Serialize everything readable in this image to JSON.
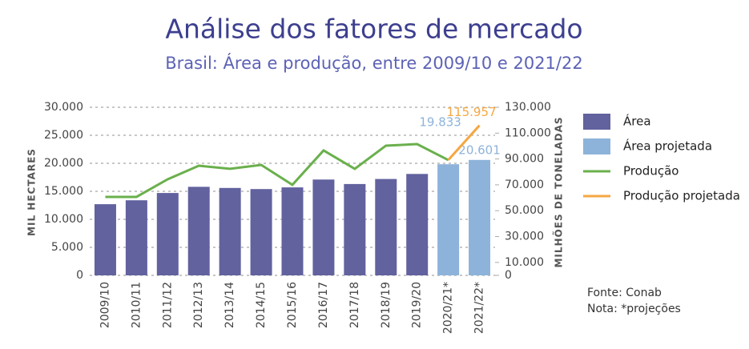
{
  "chart_data": {
    "type": "bar-line",
    "title": "Análise dos fatores de mercado",
    "subtitle": "Brasil: Área e produção, entre 2009/10 e 2021/22",
    "ylabel": "MIL HECTARES",
    "y2label": "MILHÕES DE TONELADAS",
    "categories": [
      "2009/10",
      "2010/11",
      "2011/12",
      "2012/13",
      "2013/14",
      "2014/15",
      "2015/16",
      "2016/17",
      "2017/18",
      "2018/19",
      "2019/20",
      "2020/21*",
      "2021/22*"
    ],
    "ylim": [
      0,
      30000
    ],
    "yticks": [
      0,
      {
        "value": 5000,
        "label": "5.000"
      },
      {
        "value": 10000,
        "label": "10.000"
      },
      {
        "value": 15000,
        "label": "15.000"
      },
      {
        "value": 20000,
        "label": "20.000"
      },
      {
        "value": 25000,
        "label": "25.000"
      },
      {
        "value": 30000,
        "label": "30.000"
      }
    ],
    "y2lim": [
      0,
      130000
    ],
    "y2ticks": [
      0,
      {
        "value": 10000,
        "label": "10.000"
      },
      {
        "value": 30000,
        "label": "30.000"
      },
      {
        "value": 50000,
        "label": "50.000"
      },
      {
        "value": 70000,
        "label": "70.000"
      },
      {
        "value": 90000,
        "label": "90.000"
      },
      {
        "value": 110000,
        "label": "110.000"
      },
      {
        "value": 130000,
        "label": "130.000"
      }
    ],
    "grid": true,
    "series": [
      {
        "name": "Área",
        "kind": "bar",
        "color": "#62629f",
        "values": [
          12700,
          13400,
          14700,
          15800,
          15600,
          15400,
          15700,
          17100,
          16300,
          17200,
          18100,
          null,
          null
        ]
      },
      {
        "name": "Área projetada",
        "kind": "bar",
        "color": "#8db3da",
        "values": [
          null,
          null,
          null,
          null,
          null,
          null,
          null,
          null,
          null,
          null,
          null,
          19833,
          20601
        ],
        "value_labels": [
          null,
          null,
          null,
          null,
          null,
          null,
          null,
          null,
          null,
          null,
          null,
          "19.833",
          "20.601"
        ]
      },
      {
        "name": "Produção",
        "kind": "line",
        "axis": "y2",
        "color": "#6ab04c",
        "values": [
          60700,
          60700,
          74300,
          84800,
          82400,
          85400,
          70000,
          96600,
          82400,
          100300,
          101500,
          89200,
          null
        ]
      },
      {
        "name": "Produção projetada",
        "kind": "line",
        "axis": "y2",
        "color": "#f5a742",
        "values": [
          null,
          null,
          null,
          null,
          null,
          null,
          null,
          null,
          null,
          null,
          null,
          89200,
          115957
        ],
        "value_labels": [
          null,
          null,
          null,
          null,
          null,
          null,
          null,
          null,
          null,
          null,
          null,
          null,
          "115.957"
        ]
      }
    ],
    "notes": [
      "Fonte: Conab",
      "Nota: *projeções"
    ]
  }
}
